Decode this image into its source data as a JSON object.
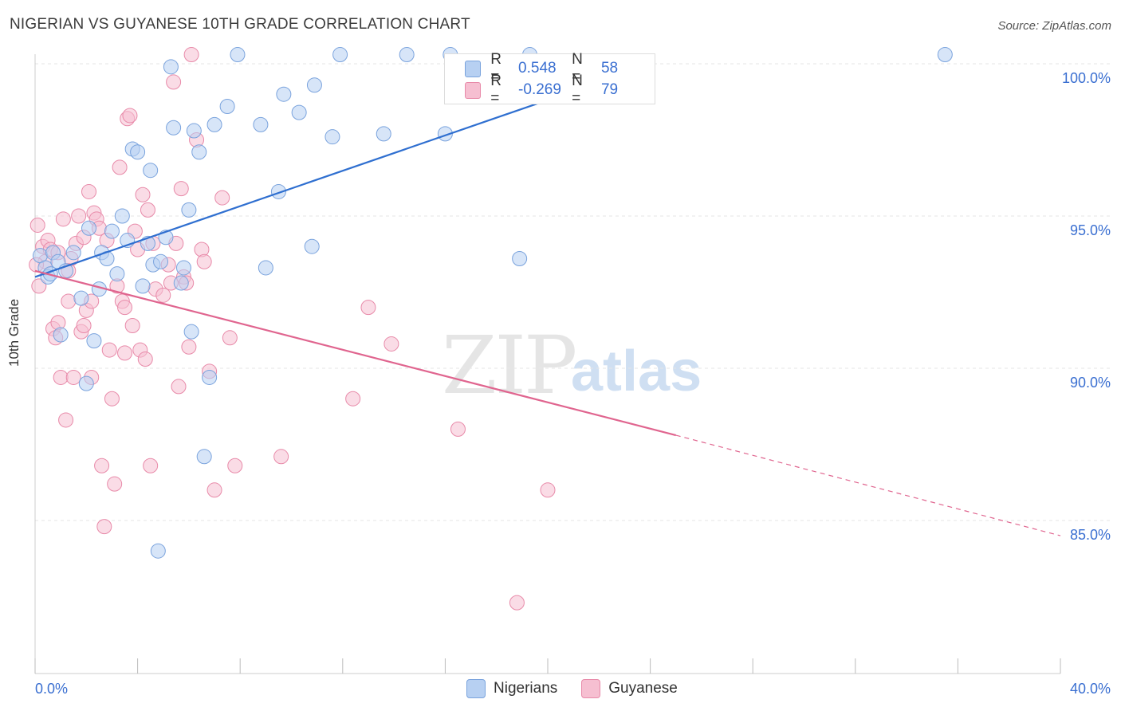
{
  "header": {
    "title": "NIGERIAN VS GUYANESE 10TH GRADE CORRELATION CHART",
    "source": "Source: ZipAtlas.com"
  },
  "watermark": {
    "zip": "ZIP",
    "atlas": "atlas"
  },
  "legend": {
    "r_label": "R =",
    "n_label": "N =",
    "rows": [
      {
        "r": "0.548",
        "n": "58"
      },
      {
        "r": "-0.269",
        "n": "79"
      }
    ]
  },
  "bottom_legend": [
    "Nigerians",
    "Guyanese"
  ],
  "colors": {
    "blue_fill": "#b7d0f2",
    "blue_stroke": "#7aa3dd",
    "blue_line": "#2f6fd0",
    "pink_fill": "#f6bfd1",
    "pink_stroke": "#e88aa9",
    "pink_line": "#e0658f",
    "tick_text": "#3a6fd1",
    "grid": "#e6e6e6"
  },
  "chart_data": {
    "type": "scatter",
    "title": "NIGERIAN VS GUYANESE 10TH GRADE CORRELATION CHART",
    "xlabel": "",
    "ylabel": "10th Grade",
    "xlim": [
      0,
      40
    ],
    "ylim": [
      80.5,
      101
    ],
    "x_tick_labels": [
      "0.0%",
      "40.0%"
    ],
    "y_ticks": [
      85,
      90,
      95,
      100
    ],
    "y_tick_labels": [
      "85.0%",
      "90.0%",
      "95.0%",
      "100.0%"
    ],
    "grid": true,
    "series": [
      {
        "name": "Nigerians",
        "r": 0.548,
        "n": 58,
        "trend": {
          "x0": 0,
          "y0": 93.0,
          "x1": 24.1,
          "y1": 100.0,
          "dashed_to": null
        },
        "points": [
          [
            0.2,
            93.7
          ],
          [
            0.4,
            93.3
          ],
          [
            0.5,
            93.0
          ],
          [
            0.7,
            93.8
          ],
          [
            0.9,
            93.5
          ],
          [
            0.6,
            93.1
          ],
          [
            1.0,
            91.1
          ],
          [
            1.2,
            93.2
          ],
          [
            1.5,
            93.8
          ],
          [
            1.8,
            92.3
          ],
          [
            2.0,
            89.5
          ],
          [
            2.3,
            90.9
          ],
          [
            2.1,
            94.6
          ],
          [
            2.5,
            92.6
          ],
          [
            2.6,
            93.8
          ],
          [
            2.8,
            93.6
          ],
          [
            3.0,
            94.5
          ],
          [
            3.2,
            93.1
          ],
          [
            3.4,
            95.0
          ],
          [
            3.6,
            94.2
          ],
          [
            3.8,
            97.2
          ],
          [
            4.0,
            97.1
          ],
          [
            4.2,
            92.7
          ],
          [
            4.4,
            94.1
          ],
          [
            4.5,
            96.5
          ],
          [
            4.6,
            93.4
          ],
          [
            4.9,
            93.5
          ],
          [
            5.1,
            94.3
          ],
          [
            5.3,
            99.9
          ],
          [
            5.4,
            97.9
          ],
          [
            5.7,
            92.8
          ],
          [
            5.8,
            93.3
          ],
          [
            6.0,
            95.2
          ],
          [
            6.1,
            91.2
          ],
          [
            6.2,
            97.8
          ],
          [
            6.4,
            97.1
          ],
          [
            6.6,
            87.1
          ],
          [
            6.8,
            89.7
          ],
          [
            7.0,
            98.0
          ],
          [
            7.5,
            98.6
          ],
          [
            7.9,
            100.3
          ],
          [
            8.8,
            98.0
          ],
          [
            9.0,
            93.3
          ],
          [
            9.5,
            95.8
          ],
          [
            9.7,
            99.0
          ],
          [
            10.3,
            98.4
          ],
          [
            10.8,
            94.0
          ],
          [
            10.9,
            99.3
          ],
          [
            11.6,
            97.6
          ],
          [
            11.9,
            100.3
          ],
          [
            13.6,
            97.7
          ],
          [
            14.5,
            100.3
          ],
          [
            16.0,
            97.7
          ],
          [
            16.2,
            100.3
          ],
          [
            18.9,
            93.6
          ],
          [
            19.3,
            100.3
          ],
          [
            35.5,
            100.3
          ],
          [
            4.8,
            84.0
          ]
        ]
      },
      {
        "name": "Guyanese",
        "r": -0.269,
        "n": 79,
        "trend": {
          "x0": 0,
          "y0": 93.2,
          "x1": 25.0,
          "y1": 87.8,
          "dashed_to": [
            40,
            84.5
          ]
        },
        "points": [
          [
            0.1,
            94.7
          ],
          [
            0.15,
            92.7
          ],
          [
            0.3,
            94.0
          ],
          [
            0.4,
            93.5
          ],
          [
            0.5,
            94.2
          ],
          [
            0.6,
            93.9
          ],
          [
            0.7,
            91.3
          ],
          [
            0.8,
            91.0
          ],
          [
            0.9,
            91.5
          ],
          [
            1.0,
            89.7
          ],
          [
            1.1,
            94.9
          ],
          [
            1.2,
            88.3
          ],
          [
            1.3,
            92.2
          ],
          [
            1.4,
            93.6
          ],
          [
            1.5,
            89.7
          ],
          [
            1.6,
            94.1
          ],
          [
            1.7,
            95.0
          ],
          [
            1.8,
            91.2
          ],
          [
            1.9,
            91.4
          ],
          [
            2.0,
            91.9
          ],
          [
            2.1,
            95.8
          ],
          [
            2.2,
            92.2
          ],
          [
            2.3,
            95.1
          ],
          [
            2.4,
            94.9
          ],
          [
            2.5,
            94.6
          ],
          [
            2.6,
            86.8
          ],
          [
            2.7,
            84.8
          ],
          [
            2.8,
            94.2
          ],
          [
            2.9,
            90.6
          ],
          [
            3.0,
            89.0
          ],
          [
            3.1,
            86.2
          ],
          [
            3.2,
            92.7
          ],
          [
            3.3,
            96.6
          ],
          [
            3.4,
            92.2
          ],
          [
            3.5,
            92.0
          ],
          [
            3.6,
            98.2
          ],
          [
            3.7,
            98.3
          ],
          [
            3.8,
            91.4
          ],
          [
            3.9,
            94.5
          ],
          [
            4.0,
            93.9
          ],
          [
            4.1,
            90.6
          ],
          [
            4.2,
            95.7
          ],
          [
            4.3,
            90.3
          ],
          [
            4.4,
            95.2
          ],
          [
            4.5,
            86.8
          ],
          [
            4.6,
            94.1
          ],
          [
            4.7,
            92.6
          ],
          [
            5.0,
            92.4
          ],
          [
            5.2,
            93.4
          ],
          [
            5.3,
            92.8
          ],
          [
            5.4,
            99.4
          ],
          [
            5.5,
            94.1
          ],
          [
            5.6,
            89.4
          ],
          [
            5.7,
            95.9
          ],
          [
            5.8,
            93.0
          ],
          [
            5.9,
            92.8
          ],
          [
            6.0,
            90.7
          ],
          [
            6.1,
            100.3
          ],
          [
            6.3,
            97.5
          ],
          [
            6.5,
            93.9
          ],
          [
            6.6,
            93.5
          ],
          [
            6.8,
            89.9
          ],
          [
            7.0,
            86.0
          ],
          [
            7.3,
            95.6
          ],
          [
            7.6,
            91.0
          ],
          [
            7.8,
            86.8
          ],
          [
            9.6,
            87.1
          ],
          [
            12.4,
            89.0
          ],
          [
            13.0,
            92.0
          ],
          [
            13.9,
            90.8
          ],
          [
            16.5,
            88.0
          ],
          [
            20.0,
            86.0
          ],
          [
            18.8,
            82.3
          ],
          [
            0.05,
            93.4
          ],
          [
            1.9,
            94.3
          ],
          [
            2.2,
            89.7
          ],
          [
            3.5,
            90.5
          ],
          [
            0.9,
            93.8
          ],
          [
            1.3,
            93.2
          ]
        ]
      }
    ]
  }
}
